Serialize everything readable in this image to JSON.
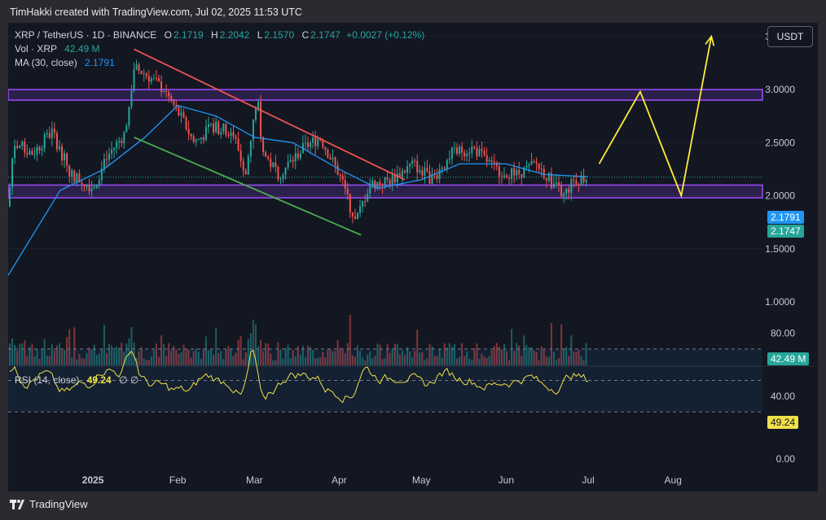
{
  "header": {
    "text": "TimHakki created with TradingView.com, Jul 02, 2025 11:53 UTC"
  },
  "legend": {
    "symbol": "XRP / TetherUS · 1D · BINANCE",
    "o_label": "O",
    "o": "2.1719",
    "h_label": "H",
    "h": "2.2042",
    "l_label": "L",
    "l": "2.1570",
    "c_label": "C",
    "c": "2.1747",
    "change": "+0.0027 (+0.12%)",
    "vol_label": "Vol · XRP",
    "vol": "42.49 M",
    "ma_label": "MA (30, close)",
    "ma": "2.1791",
    "rsi_label": "RSI (14, close)",
    "rsi": "49.24",
    "rsi_extra": "∅  ∅"
  },
  "currency_button": "USDT",
  "price_axis": [
    "3.5000",
    "3.0000",
    "2.5000",
    "2.0000",
    "1.5000",
    "1.0000"
  ],
  "price_tags": {
    "ma": "2.1791",
    "close": "2.1747",
    "volume": "42.49 M",
    "rsi": "49.24"
  },
  "rsi_axis": [
    "80.00",
    "40.00",
    "0.00"
  ],
  "time_axis": [
    "2025",
    "Feb",
    "Mar",
    "Apr",
    "May",
    "Jun",
    "Jul",
    "Aug"
  ],
  "footer": {
    "brand": "TradingView"
  },
  "colors": {
    "up": "#26a69a",
    "down": "#ef5350",
    "ma": "#2196f3",
    "rsi": "#f0e04a",
    "zone": "#9c4dff",
    "resistance": "#ef5350",
    "support": "#4caf50",
    "projection": "#ffeb3b"
  },
  "chart_data": {
    "type": "candlestick",
    "symbol": "XRP / TetherUS",
    "interval": "1D",
    "exchange": "BINANCE",
    "ylim": [
      1.0,
      3.6
    ],
    "x_start": "2024-12-01",
    "x_end": "2025-08-31",
    "series": [
      {
        "name": "XRP close",
        "x": [
          "2024-12-01",
          "2024-12-03",
          "2024-12-10",
          "2024-12-17",
          "2024-12-24",
          "2025-01-01",
          "2025-01-07",
          "2025-01-13",
          "2025-01-16",
          "2025-01-20",
          "2025-01-27",
          "2025-02-03",
          "2025-02-07",
          "2025-02-14",
          "2025-02-21",
          "2025-02-26",
          "2025-03-02",
          "2025-03-04",
          "2025-03-10",
          "2025-03-19",
          "2025-03-25",
          "2025-04-01",
          "2025-04-07",
          "2025-04-12",
          "2025-04-20",
          "2025-04-28",
          "2025-05-05",
          "2025-05-12",
          "2025-05-20",
          "2025-05-28",
          "2025-06-05",
          "2025-06-12",
          "2025-06-22",
          "2025-06-26",
          "2025-07-01"
        ],
        "y": [
          1.9,
          2.5,
          2.4,
          2.6,
          2.2,
          2.08,
          2.4,
          2.6,
          3.2,
          3.15,
          3.0,
          2.7,
          2.5,
          2.65,
          2.6,
          2.2,
          2.95,
          2.4,
          2.2,
          2.45,
          2.55,
          2.2,
          1.75,
          2.1,
          2.15,
          2.3,
          2.15,
          2.4,
          2.45,
          2.25,
          2.2,
          2.3,
          2.0,
          2.15,
          2.1747
        ]
      },
      {
        "name": "MA (30, close)",
        "x": [
          "2024-12-01",
          "2024-12-20",
          "2025-01-05",
          "2025-01-20",
          "2025-02-01",
          "2025-02-15",
          "2025-03-01",
          "2025-03-15",
          "2025-04-01",
          "2025-04-15",
          "2025-05-01",
          "2025-05-15",
          "2025-06-01",
          "2025-06-15",
          "2025-07-01"
        ],
        "y": [
          1.25,
          2.05,
          2.25,
          2.55,
          2.85,
          2.75,
          2.55,
          2.5,
          2.25,
          2.07,
          2.15,
          2.3,
          2.3,
          2.2,
          2.1791
        ]
      }
    ],
    "volume": {
      "last": "42.49 M"
    },
    "rsi": {
      "period": 14,
      "last": 49.24,
      "bands": [
        70,
        30
      ],
      "axis": [
        80,
        40,
        0
      ]
    },
    "annotations": [
      {
        "type": "zone",
        "from": 2.9,
        "to": 3.0
      },
      {
        "type": "zone",
        "from": 1.98,
        "to": 2.1
      },
      {
        "type": "trendline",
        "color": "red",
        "points": [
          [
            "2025-01-16",
            3.38
          ],
          [
            "2025-04-25",
            2.15
          ]
        ]
      },
      {
        "type": "trendline",
        "color": "green",
        "points": [
          [
            "2025-01-16",
            2.55
          ],
          [
            "2025-04-09",
            1.63
          ]
        ]
      },
      {
        "type": "projection",
        "points": [
          [
            "2025-07-05",
            2.3
          ],
          [
            "2025-07-20",
            2.98
          ],
          [
            "2025-08-04",
            2.0
          ],
          [
            "2025-08-15",
            3.5
          ]
        ]
      }
    ]
  }
}
